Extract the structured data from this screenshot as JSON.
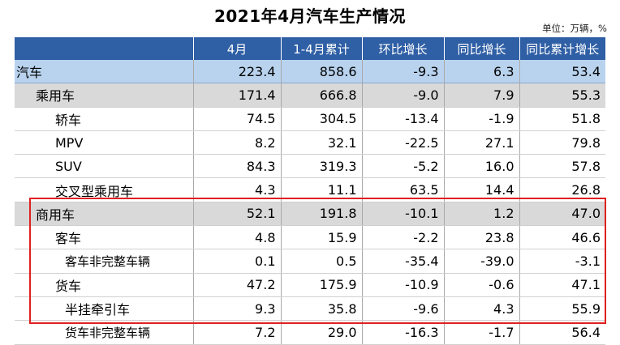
{
  "title": "2021年4月汽车生产情况",
  "unit": "单位：万辆，%",
  "headers": [
    "",
    "4月",
    "1-4月累计",
    "环比增长",
    "同比增长",
    "同比累计增长"
  ],
  "rows": [
    {
      "name": "汽车",
      "apr": "223.4",
      "cum": "858.6",
      "mom": "-9.3",
      "yoy": "6.3",
      "yoy_cum": "53.4"
    },
    {
      "name": "乘用车",
      "apr": "171.4",
      "cum": "666.8",
      "mom": "-9.0",
      "yoy": "7.9",
      "yoy_cum": "55.3"
    },
    {
      "name": "轿车",
      "apr": "74.5",
      "cum": "304.5",
      "mom": "-13.4",
      "yoy": "-1.9",
      "yoy_cum": "51.8"
    },
    {
      "name": "MPV",
      "apr": "8.2",
      "cum": "32.1",
      "mom": "-22.5",
      "yoy": "27.1",
      "yoy_cum": "79.8"
    },
    {
      "name": "SUV",
      "apr": "84.3",
      "cum": "319.3",
      "mom": "-5.2",
      "yoy": "16.0",
      "yoy_cum": "57.8"
    },
    {
      "name": "交叉型乘用车",
      "apr": "4.3",
      "cum": "11.1",
      "mom": "63.5",
      "yoy": "14.4",
      "yoy_cum": "26.8"
    },
    {
      "name": "商用车",
      "apr": "52.1",
      "cum": "191.8",
      "mom": "-10.1",
      "yoy": "1.2",
      "yoy_cum": "47.0"
    },
    {
      "name": "客车",
      "apr": "4.8",
      "cum": "15.9",
      "mom": "-2.2",
      "yoy": "23.8",
      "yoy_cum": "46.6"
    },
    {
      "name": "客车非完整车辆",
      "apr": "0.1",
      "cum": "0.5",
      "mom": "-35.4",
      "yoy": "-39.0",
      "yoy_cum": "-3.1"
    },
    {
      "name": "货车",
      "apr": "47.2",
      "cum": "175.9",
      "mom": "-10.9",
      "yoy": "-0.6",
      "yoy_cum": "47.1"
    },
    {
      "name": "半挂牵引车",
      "apr": "9.3",
      "cum": "35.8",
      "mom": "-9.6",
      "yoy": "4.3",
      "yoy_cum": "55.9"
    },
    {
      "name": "货车非完整车辆",
      "apr": "7.2",
      "cum": "29.0",
      "mom": "-16.3",
      "yoy": "-1.7",
      "yoy_cum": "56.4"
    }
  ],
  "colors": {
    "header_bg": "#2f5fa5",
    "top_row_bg": "#b9d3ee",
    "sub_row_bg": "#d9d9d9",
    "highlight_border": "#e02020"
  }
}
